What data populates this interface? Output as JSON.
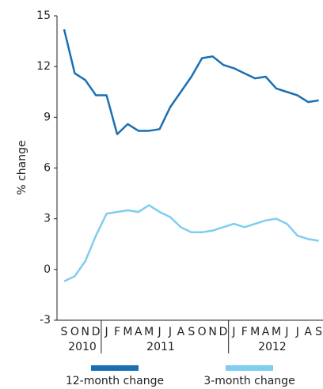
{
  "chart_data": {
    "type": "line",
    "ylabel": "% change",
    "categories": [
      "S",
      "O",
      "N",
      "D",
      "J",
      "F",
      "M",
      "A",
      "M",
      "J",
      "J",
      "A",
      "S",
      "O",
      "N",
      "D",
      "J",
      "F",
      "M",
      "A",
      "M",
      "J",
      "J",
      "A",
      "S"
    ],
    "year_labels": [
      "2010",
      "2011",
      "2012"
    ],
    "ylim": [
      -3,
      15
    ],
    "yticks": [
      -3,
      0,
      3,
      6,
      9,
      12,
      15
    ],
    "series": [
      {
        "name": "12-month change",
        "color": "#1a6fb3",
        "values": [
          14.2,
          11.6,
          11.2,
          10.3,
          10.3,
          8.0,
          8.6,
          8.2,
          8.2,
          8.3,
          9.6,
          10.5,
          11.4,
          12.5,
          12.6,
          12.1,
          11.9,
          11.6,
          11.3,
          11.4,
          10.7,
          10.5,
          10.3,
          9.9,
          10.0
        ]
      },
      {
        "name": "3-month change",
        "color": "#7fcdf0",
        "values": [
          -0.7,
          -0.4,
          0.5,
          2.0,
          3.3,
          3.4,
          3.5,
          3.4,
          3.8,
          3.4,
          3.1,
          2.5,
          2.2,
          2.2,
          2.3,
          2.5,
          2.7,
          2.5,
          2.7,
          2.9,
          3.0,
          2.7,
          2.0,
          1.8,
          1.7
        ]
      }
    ]
  }
}
